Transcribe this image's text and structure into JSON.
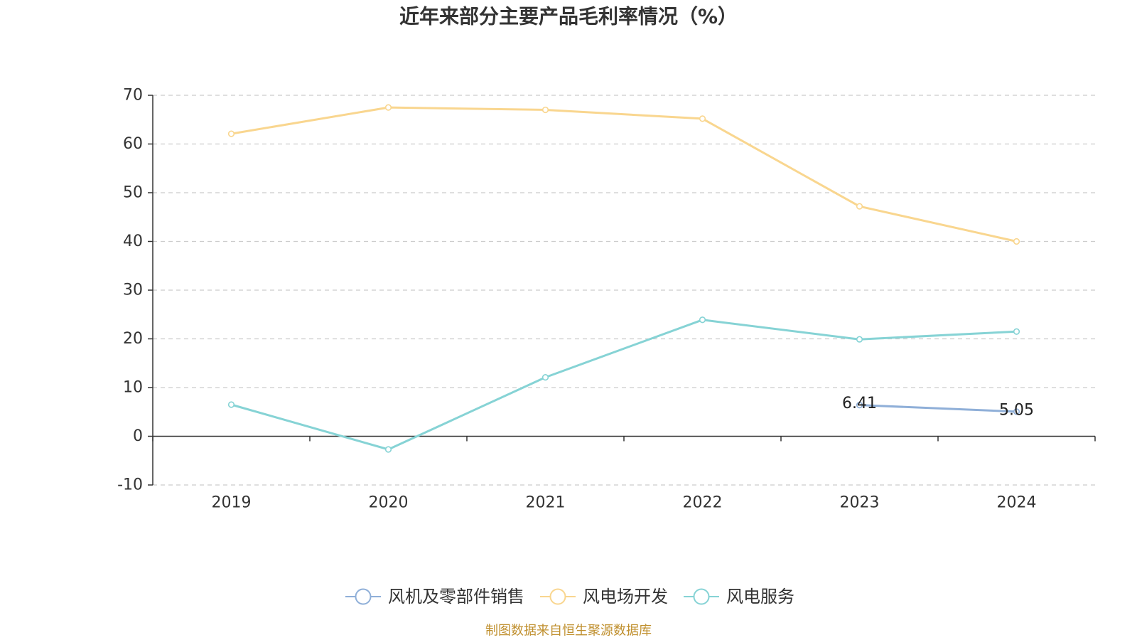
{
  "chart_data": {
    "type": "line",
    "title": "近年来部分主要产品毛利率情况（%）",
    "xlabel": "",
    "ylabel": "",
    "categories": [
      "2019",
      "2020",
      "2021",
      "2022",
      "2023",
      "2024"
    ],
    "ylim": [
      -10,
      70
    ],
    "y_ticks": [
      -10,
      0,
      10,
      20,
      30,
      40,
      50,
      60,
      70
    ],
    "grid": true,
    "legend_position": "bottom",
    "series": [
      {
        "name": "风机及零部件销售",
        "color": "#8fafd8",
        "show_labels": true,
        "values": [
          null,
          null,
          null,
          null,
          6.41,
          5.05
        ]
      },
      {
        "name": "风电场开发",
        "color": "#f9d68f",
        "show_labels": false,
        "values": [
          62.1,
          67.5,
          67.0,
          65.2,
          47.2,
          40.0
        ]
      },
      {
        "name": "风电服务",
        "color": "#86d3d5",
        "show_labels": false,
        "values": [
          6.5,
          -2.7,
          12.1,
          23.9,
          19.9,
          21.5
        ]
      }
    ]
  },
  "source": "制图数据来自恒生聚源数据库",
  "colors": {
    "axis": "#333333",
    "grid": "#cccccc",
    "source": "#c0902f"
  }
}
